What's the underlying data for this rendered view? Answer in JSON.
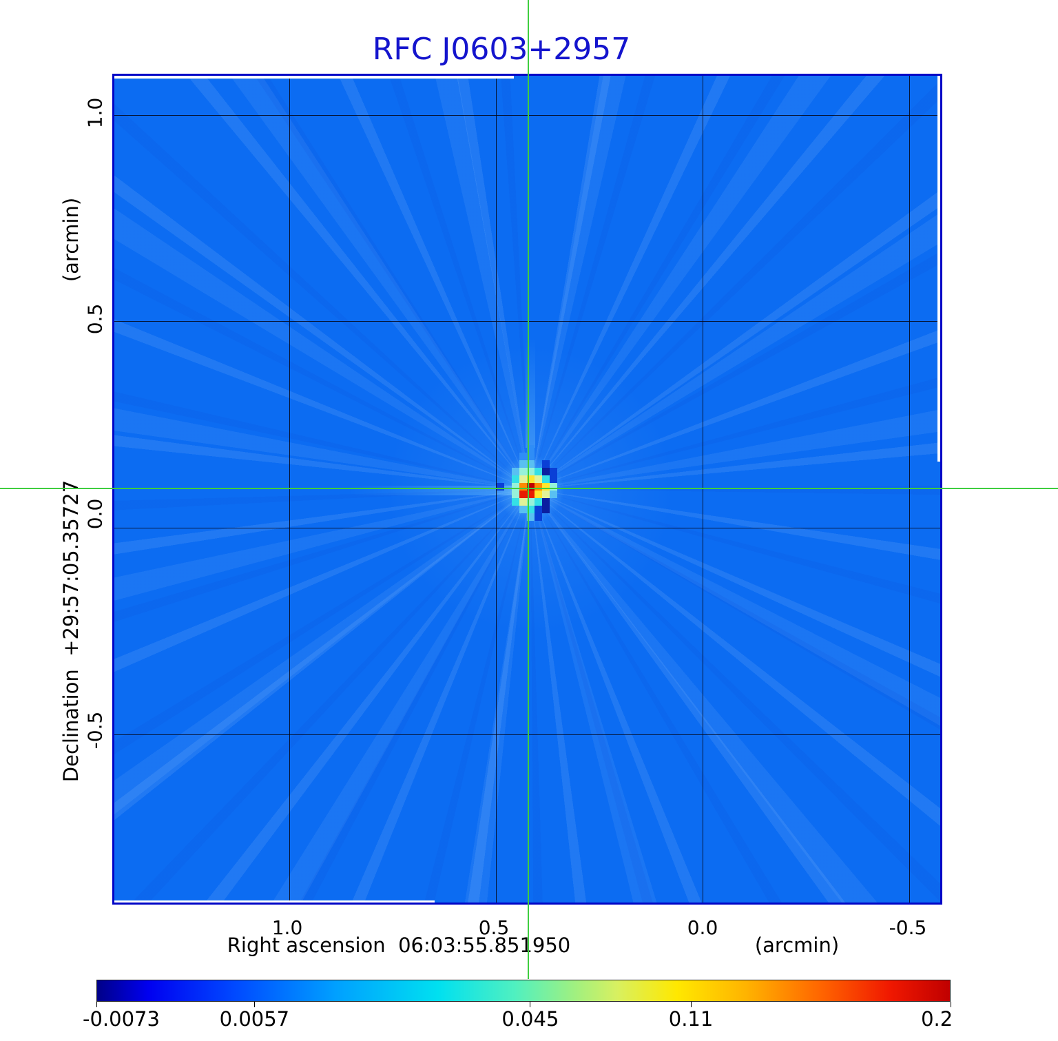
{
  "title": {
    "text": "RFC J0603+2957",
    "color": "#1414cd"
  },
  "axes": {
    "y": {
      "unit_label": "(arcmin)",
      "axis_label": "Declination  +29:57:05.35727",
      "ticks": [
        "1.0",
        "0.5",
        "0.0",
        "-0.5"
      ]
    },
    "x": {
      "axis_label": "Right ascension  06:03:55.851950",
      "unit_label": "(arcmin)",
      "ticks": [
        "1.0",
        "0.5",
        "0.0",
        "-0.5"
      ]
    }
  },
  "colorbar": {
    "tick_labels": [
      "-0.0073",
      "0.0057",
      "0.045",
      "0.11",
      "0.2"
    ]
  },
  "chart_data": {
    "type": "heatmap",
    "title": "RFC J0603+2957",
    "xlabel": "Right ascension  06:03:55.851950 (arcmin)",
    "ylabel": "Declination  +29:57:05.35727 (arcmin)",
    "x_ticks_arcmin": [
      1.0,
      0.5,
      0.0,
      -0.5
    ],
    "y_ticks_arcmin": [
      1.0,
      0.5,
      0.0,
      -0.5
    ],
    "x_range_arcmin": [
      1.42,
      -0.59
    ],
    "y_range_arcmin": [
      -0.92,
      1.1
    ],
    "grid": true,
    "crosshair_arcmin": {
      "x": 0.42,
      "y": 0.09
    },
    "background_level_jy": 0.0,
    "peak_level_jy": 0.2,
    "colormap": "jet",
    "colorbar": {
      "tick_values": [
        -0.0073,
        0.0057,
        0.045,
        0.11,
        0.2
      ],
      "tick_positions_pct": [
        0,
        18.5,
        50.8,
        69.6,
        100
      ],
      "label_positions_pct": [
        2.9,
        18.5,
        50.8,
        69.6,
        98.4
      ],
      "gradient_stops": [
        [
          "#000088",
          0
        ],
        [
          "#0000f0",
          6
        ],
        [
          "#0048ff",
          16
        ],
        [
          "#00a0ff",
          28
        ],
        [
          "#00e0f0",
          40
        ],
        [
          "#50f0c0",
          49
        ],
        [
          "#a0f080",
          56
        ],
        [
          "#d8f060",
          61
        ],
        [
          "#ffe800",
          68
        ],
        [
          "#ffb400",
          76
        ],
        [
          "#ff6400",
          85
        ],
        [
          "#f01800",
          93
        ],
        [
          "#c00000",
          100
        ]
      ]
    },
    "source_blob": {
      "palette": {
        "b1": "#2f8df6",
        "b2": "#59c0f2",
        "cy": "#35e0e6",
        "pc": "#97f2da",
        "kh": "#e2f398",
        "yl": "#ffe62e",
        "or": "#ff8a00",
        "rd": "#e81c00",
        "dr": "#bf0000",
        "n1": "#0a3fd6",
        "n2": "#0b1fa0"
      },
      "matrix": [
        [
          "",
          "",
          "",
          "",
          "",
          "b1",
          "",
          "",
          "",
          "",
          ""
        ],
        [
          "",
          "",
          "",
          "",
          "b1",
          "b1",
          "",
          "",
          "",
          "",
          ""
        ],
        [
          "",
          "",
          "",
          "",
          "b2",
          "b2",
          "",
          "n1",
          "",
          "",
          ""
        ],
        [
          "",
          "",
          "",
          "b2",
          "pc",
          "pc",
          "cy",
          "n2",
          "n1",
          "",
          ""
        ],
        [
          "",
          "",
          "",
          "cy",
          "kh",
          "yl",
          "kh",
          "cy",
          "n1",
          "",
          ""
        ],
        [
          "",
          "n1",
          "",
          "pc",
          "or",
          "dr",
          "or",
          "yl",
          "pc",
          "",
          ""
        ],
        [
          "",
          "",
          "",
          "pc",
          "rd",
          "rd",
          "yl",
          "kh",
          "b2",
          "",
          ""
        ],
        [
          "",
          "",
          "",
          "cy",
          "kh",
          "pc",
          "cy",
          "n2",
          "",
          "",
          ""
        ],
        [
          "",
          "",
          "",
          "",
          "b2",
          "cy",
          "n1",
          "n2",
          "",
          "",
          ""
        ],
        [
          "",
          "",
          "",
          "",
          "",
          "b2",
          "n1",
          "",
          "",
          "",
          ""
        ],
        [
          "",
          "",
          "",
          "",
          "",
          "",
          "",
          "",
          "",
          "",
          ""
        ]
      ]
    }
  }
}
